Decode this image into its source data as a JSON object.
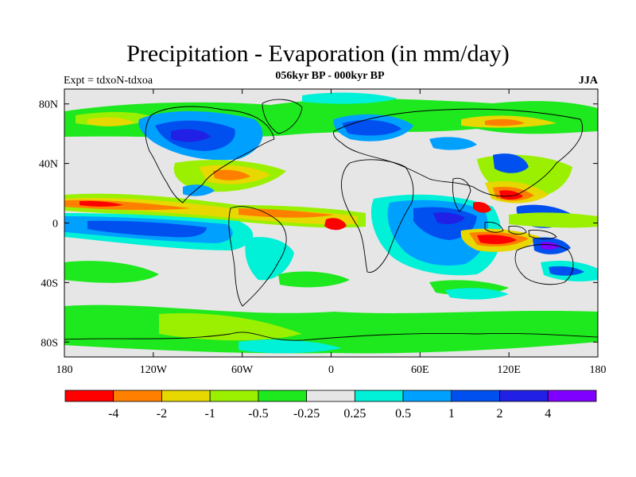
{
  "title": "Precipitation - Evaporation (in mm/day)",
  "subtitle": "056kyr BP - 000kyr BP",
  "experiment": "Expt = tdxoN-tdxoa",
  "season": "JJA",
  "axes": {
    "lat_ticks": [
      {
        "value": 80,
        "label": "80N"
      },
      {
        "value": 40,
        "label": "40N"
      },
      {
        "value": 0,
        "label": "0"
      },
      {
        "value": -40,
        "label": "40S"
      },
      {
        "value": -80,
        "label": "80S"
      }
    ],
    "lon_ticks": [
      {
        "value": -180,
        "label": "180"
      },
      {
        "value": -120,
        "label": "120W"
      },
      {
        "value": -60,
        "label": "60W"
      },
      {
        "value": 0,
        "label": "0"
      },
      {
        "value": 60,
        "label": "60E"
      },
      {
        "value": 120,
        "label": "120E"
      },
      {
        "value": 180,
        "label": "180"
      }
    ]
  },
  "colorbar": {
    "colors": [
      "#ff0000",
      "#ff8000",
      "#e6d800",
      "#9af000",
      "#1ee81e",
      "#e6e6e6",
      "#00f0d8",
      "#00a0ff",
      "#0050f0",
      "#2020e6",
      "#8000ff"
    ],
    "labels": [
      "-4",
      "-2",
      "-1",
      "-0.5",
      "-0.25",
      "0.25",
      "0.5",
      "1",
      "2",
      "4"
    ]
  }
}
